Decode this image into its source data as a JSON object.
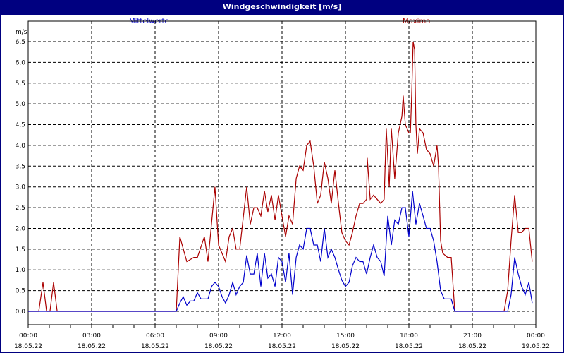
{
  "window": {
    "title": "Windgeschwindigkeit [m/s]"
  },
  "legend": {
    "mean": "Mittelwerte",
    "max": "Maxima"
  },
  "colors": {
    "titlebar": "#000080",
    "mean": "#0000cc",
    "max": "#aa0000",
    "grid": "#000000"
  },
  "chart_data": {
    "type": "line",
    "title": "Windgeschwindigkeit [m/s]",
    "xlabel": "",
    "ylabel": "m/s",
    "ylim": [
      0,
      6.5
    ],
    "xlim_hours": [
      0,
      24
    ],
    "grid": true,
    "legend_position": "top",
    "y_ticks": [
      "0,0",
      "0,5",
      "1,0",
      "1,5",
      "2,0",
      "2,5",
      "3,0",
      "3,5",
      "4,0",
      "4,5",
      "5,0",
      "5,5",
      "6,0",
      "6,5"
    ],
    "x_ticks": [
      {
        "time": "00:00",
        "date": "18.05.22"
      },
      {
        "time": "03:00",
        "date": "18.05.22"
      },
      {
        "time": "06:00",
        "date": "18.05.22"
      },
      {
        "time": "09:00",
        "date": "18.05.22"
      },
      {
        "time": "12:00",
        "date": "18.05.22"
      },
      {
        "time": "15:00",
        "date": "18.05.22"
      },
      {
        "time": "18:00",
        "date": "18.05.22"
      },
      {
        "time": "21:00",
        "date": "18.05.22"
      },
      {
        "time": "00:00",
        "date": "19.05.22"
      }
    ],
    "series": [
      {
        "name": "Mittelwerte",
        "color": "#0000cc",
        "points_hours_value": [
          [
            0,
            0
          ],
          [
            7,
            0
          ],
          [
            7.17,
            0.2
          ],
          [
            7.33,
            0.35
          ],
          [
            7.5,
            0.15
          ],
          [
            7.67,
            0.25
          ],
          [
            7.83,
            0.25
          ],
          [
            8,
            0.45
          ],
          [
            8.17,
            0.3
          ],
          [
            8.33,
            0.3
          ],
          [
            8.5,
            0.3
          ],
          [
            8.67,
            0.6
          ],
          [
            8.83,
            0.7
          ],
          [
            9,
            0.6
          ],
          [
            9.17,
            0.35
          ],
          [
            9.33,
            0.2
          ],
          [
            9.5,
            0.4
          ],
          [
            9.67,
            0.7
          ],
          [
            9.83,
            0.4
          ],
          [
            10,
            0.6
          ],
          [
            10.17,
            0.7
          ],
          [
            10.33,
            1.35
          ],
          [
            10.5,
            0.9
          ],
          [
            10.67,
            0.9
          ],
          [
            10.83,
            1.4
          ],
          [
            11,
            0.6
          ],
          [
            11.17,
            1.4
          ],
          [
            11.33,
            0.8
          ],
          [
            11.5,
            0.9
          ],
          [
            11.67,
            0.6
          ],
          [
            11.83,
            1.3
          ],
          [
            12,
            1.2
          ],
          [
            12.17,
            0.7
          ],
          [
            12.33,
            1.4
          ],
          [
            12.5,
            0.4
          ],
          [
            12.67,
            1.3
          ],
          [
            12.83,
            1.6
          ],
          [
            13,
            1.5
          ],
          [
            13.17,
            2.0
          ],
          [
            13.33,
            2.0
          ],
          [
            13.5,
            1.6
          ],
          [
            13.67,
            1.6
          ],
          [
            13.83,
            1.2
          ],
          [
            14,
            2.0
          ],
          [
            14.17,
            1.3
          ],
          [
            14.33,
            1.5
          ],
          [
            14.5,
            1.3
          ],
          [
            14.67,
            1.0
          ],
          [
            14.83,
            0.75
          ],
          [
            15,
            0.6
          ],
          [
            15.17,
            0.7
          ],
          [
            15.33,
            1.1
          ],
          [
            15.5,
            1.3
          ],
          [
            15.67,
            1.2
          ],
          [
            15.83,
            1.2
          ],
          [
            16,
            0.9
          ],
          [
            16.17,
            1.3
          ],
          [
            16.33,
            1.6
          ],
          [
            16.5,
            1.3
          ],
          [
            16.67,
            1.2
          ],
          [
            16.83,
            0.85
          ],
          [
            17,
            2.3
          ],
          [
            17.17,
            1.6
          ],
          [
            17.33,
            2.2
          ],
          [
            17.5,
            2.1
          ],
          [
            17.67,
            2.5
          ],
          [
            17.83,
            2.5
          ],
          [
            18,
            1.8
          ],
          [
            18.17,
            2.9
          ],
          [
            18.33,
            2.1
          ],
          [
            18.5,
            2.6
          ],
          [
            18.67,
            2.3
          ],
          [
            18.83,
            2.0
          ],
          [
            19,
            2.0
          ],
          [
            19.17,
            1.7
          ],
          [
            19.33,
            1.2
          ],
          [
            19.5,
            0.5
          ],
          [
            19.67,
            0.3
          ],
          [
            19.83,
            0.3
          ],
          [
            20,
            0.3
          ],
          [
            20.17,
            0
          ],
          [
            22.67,
            0
          ],
          [
            22.83,
            0.4
          ],
          [
            23,
            1.3
          ],
          [
            23.17,
            0.9
          ],
          [
            23.33,
            0.6
          ],
          [
            23.5,
            0.4
          ],
          [
            23.67,
            0.7
          ],
          [
            23.83,
            0.2
          ]
        ]
      },
      {
        "name": "Maxima",
        "color": "#aa0000",
        "points_hours_value": [
          [
            0,
            0
          ],
          [
            0.5,
            0
          ],
          [
            0.7,
            0.7
          ],
          [
            0.87,
            0
          ],
          [
            1.03,
            0
          ],
          [
            1.2,
            0.7
          ],
          [
            1.37,
            0
          ],
          [
            7,
            0
          ],
          [
            7.17,
            1.8
          ],
          [
            7.5,
            1.2
          ],
          [
            7.83,
            1.3
          ],
          [
            8,
            1.3
          ],
          [
            8.33,
            1.8
          ],
          [
            8.5,
            1.2
          ],
          [
            8.83,
            3.0
          ],
          [
            9,
            1.6
          ],
          [
            9.33,
            1.2
          ],
          [
            9.5,
            1.8
          ],
          [
            9.67,
            2.0
          ],
          [
            9.83,
            1.5
          ],
          [
            10,
            1.5
          ],
          [
            10.33,
            3.0
          ],
          [
            10.5,
            2.1
          ],
          [
            10.67,
            2.5
          ],
          [
            10.83,
            2.5
          ],
          [
            11,
            2.3
          ],
          [
            11.17,
            2.9
          ],
          [
            11.33,
            2.4
          ],
          [
            11.5,
            2.8
          ],
          [
            11.67,
            2.2
          ],
          [
            11.83,
            2.8
          ],
          [
            12,
            2.3
          ],
          [
            12.17,
            1.8
          ],
          [
            12.33,
            2.3
          ],
          [
            12.5,
            2.1
          ],
          [
            12.67,
            3.2
          ],
          [
            12.83,
            3.5
          ],
          [
            13,
            3.4
          ],
          [
            13.17,
            4.0
          ],
          [
            13.33,
            4.1
          ],
          [
            13.5,
            3.5
          ],
          [
            13.67,
            2.6
          ],
          [
            13.83,
            2.8
          ],
          [
            14,
            3.6
          ],
          [
            14.17,
            3.2
          ],
          [
            14.33,
            2.6
          ],
          [
            14.5,
            3.4
          ],
          [
            14.67,
            2.6
          ],
          [
            14.83,
            1.9
          ],
          [
            15,
            1.7
          ],
          [
            15.17,
            1.6
          ],
          [
            15.33,
            1.9
          ],
          [
            15.5,
            2.3
          ],
          [
            15.67,
            2.6
          ],
          [
            15.83,
            2.6
          ],
          [
            16,
            2.7
          ],
          [
            16.03,
            3.7
          ],
          [
            16.17,
            2.7
          ],
          [
            16.33,
            2.8
          ],
          [
            16.5,
            2.7
          ],
          [
            16.67,
            2.6
          ],
          [
            16.83,
            2.7
          ],
          [
            16.93,
            4.4
          ],
          [
            17.07,
            3.0
          ],
          [
            17.17,
            4.4
          ],
          [
            17.33,
            3.2
          ],
          [
            17.5,
            4.3
          ],
          [
            17.67,
            4.7
          ],
          [
            17.73,
            5.2
          ],
          [
            17.83,
            4.5
          ],
          [
            18,
            4.3
          ],
          [
            18.07,
            4.3
          ],
          [
            18.13,
            5.2
          ],
          [
            18.2,
            6.5
          ],
          [
            18.27,
            6.3
          ],
          [
            18.33,
            4.5
          ],
          [
            18.4,
            3.8
          ],
          [
            18.5,
            4.4
          ],
          [
            18.67,
            4.3
          ],
          [
            18.83,
            3.9
          ],
          [
            19,
            3.8
          ],
          [
            19.17,
            3.5
          ],
          [
            19.33,
            4.0
          ],
          [
            19.4,
            3.5
          ],
          [
            19.5,
            1.7
          ],
          [
            19.6,
            1.4
          ],
          [
            19.83,
            1.3
          ],
          [
            20,
            1.3
          ],
          [
            20.17,
            0
          ],
          [
            22.5,
            0
          ],
          [
            22.67,
            0.5
          ],
          [
            22.83,
            1.7
          ],
          [
            23,
            2.8
          ],
          [
            23.17,
            1.9
          ],
          [
            23.33,
            1.9
          ],
          [
            23.5,
            2.0
          ],
          [
            23.67,
            2.0
          ],
          [
            23.83,
            1.2
          ]
        ]
      }
    ]
  }
}
